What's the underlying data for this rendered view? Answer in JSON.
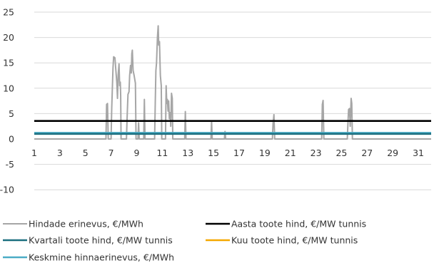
{
  "chart_data": {
    "type": "line",
    "title": "",
    "xlabel": "",
    "ylabel": "",
    "xlim": [
      1,
      32
    ],
    "ylim": [
      -12,
      25
    ],
    "y_ticks": [
      25,
      20,
      15,
      10,
      5,
      0,
      -5,
      -10
    ],
    "x_tick_labels": [
      "1",
      "3",
      "5",
      "7",
      "9",
      "11",
      "13",
      "15",
      "17",
      "19",
      "21",
      "23",
      "25",
      "27",
      "29",
      "31"
    ],
    "grid": "horizontal",
    "legend_position": "bottom",
    "series": [
      {
        "name": "Hindade erinevus, €/MWh",
        "color": "#a6a6a6",
        "points": [
          [
            1,
            0
          ],
          [
            6.6,
            0
          ],
          [
            6.65,
            6.8
          ],
          [
            6.72,
            7
          ],
          [
            6.78,
            0
          ],
          [
            7,
            0
          ],
          [
            7.05,
            6
          ],
          [
            7.15,
            14
          ],
          [
            7.2,
            16.2
          ],
          [
            7.3,
            16
          ],
          [
            7.45,
            11
          ],
          [
            7.5,
            8
          ],
          [
            7.55,
            12.5
          ],
          [
            7.62,
            14.8
          ],
          [
            7.67,
            10.5
          ],
          [
            7.72,
            11.2
          ],
          [
            7.75,
            8.5
          ],
          [
            7.78,
            0
          ],
          [
            8.2,
            0
          ],
          [
            8.25,
            4
          ],
          [
            8.32,
            8.8
          ],
          [
            8.4,
            9.3
          ],
          [
            8.45,
            12.5
          ],
          [
            8.52,
            14.5
          ],
          [
            8.58,
            13
          ],
          [
            8.62,
            16.8
          ],
          [
            8.66,
            17.5
          ],
          [
            8.72,
            13.5
          ],
          [
            8.8,
            12.5
          ],
          [
            8.9,
            11
          ],
          [
            8.95,
            0
          ],
          [
            9.1,
            0
          ],
          [
            9.15,
            3.2
          ],
          [
            9.2,
            0
          ],
          [
            9.55,
            0
          ],
          [
            9.6,
            7.8
          ],
          [
            9.65,
            0
          ],
          [
            10.4,
            0
          ],
          [
            10.45,
            7
          ],
          [
            10.5,
            13.5
          ],
          [
            10.55,
            15
          ],
          [
            10.62,
            20
          ],
          [
            10.68,
            22.3
          ],
          [
            10.72,
            18.5
          ],
          [
            10.78,
            19.2
          ],
          [
            10.85,
            12.5
          ],
          [
            10.92,
            10.5
          ],
          [
            10.96,
            0
          ],
          [
            11.25,
            0
          ],
          [
            11.3,
            10.5
          ],
          [
            11.35,
            7
          ],
          [
            11.4,
            7.8
          ],
          [
            11.45,
            5.5
          ],
          [
            11.5,
            7.5
          ],
          [
            11.55,
            4
          ],
          [
            11.62,
            5.2
          ],
          [
            11.66,
            2.5
          ],
          [
            11.72,
            9
          ],
          [
            11.78,
            8
          ],
          [
            11.82,
            0
          ],
          [
            12.75,
            0
          ],
          [
            12.8,
            5.4
          ],
          [
            12.85,
            0
          ],
          [
            14.8,
            0
          ],
          [
            14.85,
            3.5
          ],
          [
            14.9,
            0
          ],
          [
            15.85,
            0
          ],
          [
            15.9,
            1.5
          ],
          [
            15.95,
            0
          ],
          [
            19.6,
            0
          ],
          [
            19.65,
            3
          ],
          [
            19.72,
            4.8
          ],
          [
            19.78,
            0
          ],
          [
            23.45,
            0
          ],
          [
            23.5,
            6.8
          ],
          [
            23.56,
            7.6
          ],
          [
            23.62,
            0
          ],
          [
            25.45,
            0
          ],
          [
            25.5,
            3
          ],
          [
            25.55,
            5.8
          ],
          [
            25.62,
            6
          ],
          [
            25.68,
            2.5
          ],
          [
            25.75,
            8
          ],
          [
            25.8,
            7
          ],
          [
            25.85,
            0
          ],
          [
            32,
            0
          ]
        ]
      },
      {
        "name": "Aasta toote hind, €/MW tunnis",
        "color": "#000000",
        "points": [
          [
            1,
            3.55
          ],
          [
            32,
            3.55
          ]
        ]
      },
      {
        "name": "Kvartali toote hind, €/MW tunnis",
        "color": "#1b6f7f",
        "points": [
          [
            1,
            1.0
          ],
          [
            32,
            1.0
          ]
        ]
      },
      {
        "name": "Kuu toote hind, €/MW tunnis",
        "color": "#f5a800",
        "points": []
      },
      {
        "name": "Keskmine hinnaerinevus, €/MWh",
        "color": "#4bacc6",
        "points": [
          [
            1,
            1.2
          ],
          [
            32,
            1.2
          ]
        ]
      }
    ]
  }
}
